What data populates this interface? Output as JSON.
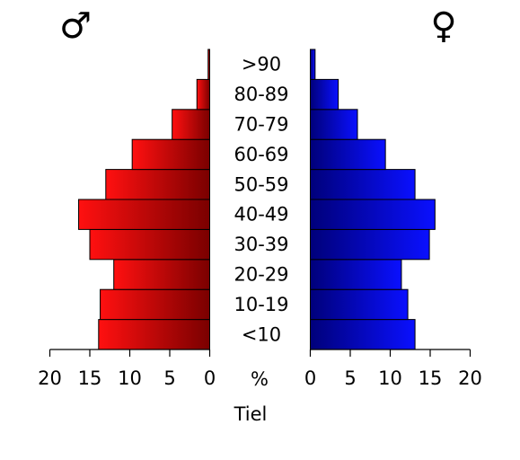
{
  "chart_data": {
    "type": "bar",
    "orientation": "horizontal-pyramid",
    "categories": [
      "<10",
      "10-19",
      "20-29",
      "30-39",
      "40-49",
      "50-59",
      "60-69",
      "70-79",
      "80-89",
      ">90"
    ],
    "series": [
      {
        "name": "♂",
        "side": "left",
        "values": [
          13.9,
          13.7,
          12.0,
          15.0,
          16.4,
          13.0,
          9.7,
          4.7,
          1.6,
          0.2
        ],
        "color_dark": "#7a0000",
        "color_light": "#ff1010"
      },
      {
        "name": "♀",
        "side": "right",
        "values": [
          13.1,
          12.2,
          11.4,
          14.9,
          15.6,
          13.1,
          9.4,
          5.9,
          3.5,
          0.6
        ],
        "color_dark": "#00007a",
        "color_light": "#0a10ff"
      }
    ],
    "x_ticks": [
      "20",
      "15",
      "10",
      "5",
      "0"
    ],
    "center_label": "%",
    "xlabel": "Tiel",
    "xlim": [
      0,
      20
    ],
    "grid": false,
    "legend": "none"
  },
  "symbols": {
    "male": "♂",
    "female": "♀"
  }
}
